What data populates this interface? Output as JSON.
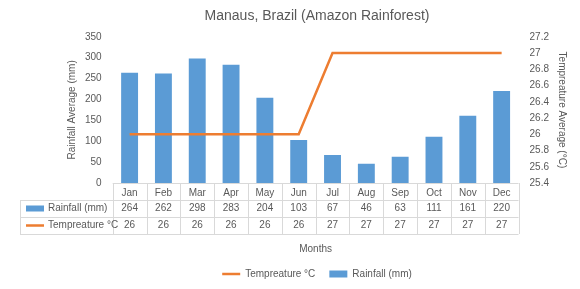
{
  "chart_data": {
    "type": "bar",
    "title": "Manaus, Brazil (Amazon Rainforest)",
    "x_label": "Months",
    "y_label": "Rainfall Average (mm)",
    "y2_label": "Tempreature Average (°C)",
    "categories": [
      "Jan",
      "Feb",
      "Mar",
      "Apr",
      "May",
      "Jun",
      "Jul",
      "Aug",
      "Sep",
      "Oct",
      "Nov",
      "Dec"
    ],
    "series": [
      {
        "name": "Rainfall (mm)",
        "type": "bar",
        "color": "#5b9bd5",
        "values": [
          264,
          262,
          298,
          283,
          204,
          103,
          67,
          46,
          63,
          111,
          161,
          220
        ]
      },
      {
        "name": "Tempreature °C",
        "type": "line",
        "color": "#ed7d31",
        "axis": "y2",
        "values": [
          26,
          26,
          26,
          26,
          26,
          26,
          27,
          27,
          27,
          27,
          27,
          27
        ]
      }
    ],
    "ylim": [
      0,
      350
    ],
    "yticks": [
      0,
      50,
      100,
      150,
      200,
      250,
      300,
      350
    ],
    "y2lim": [
      25.4,
      27.2
    ],
    "y2ticks": [
      25.4,
      25.6,
      25.8,
      26,
      26.2,
      26.4,
      26.6,
      26.8,
      27,
      27.2
    ],
    "grid": false,
    "legend": "bottom"
  }
}
